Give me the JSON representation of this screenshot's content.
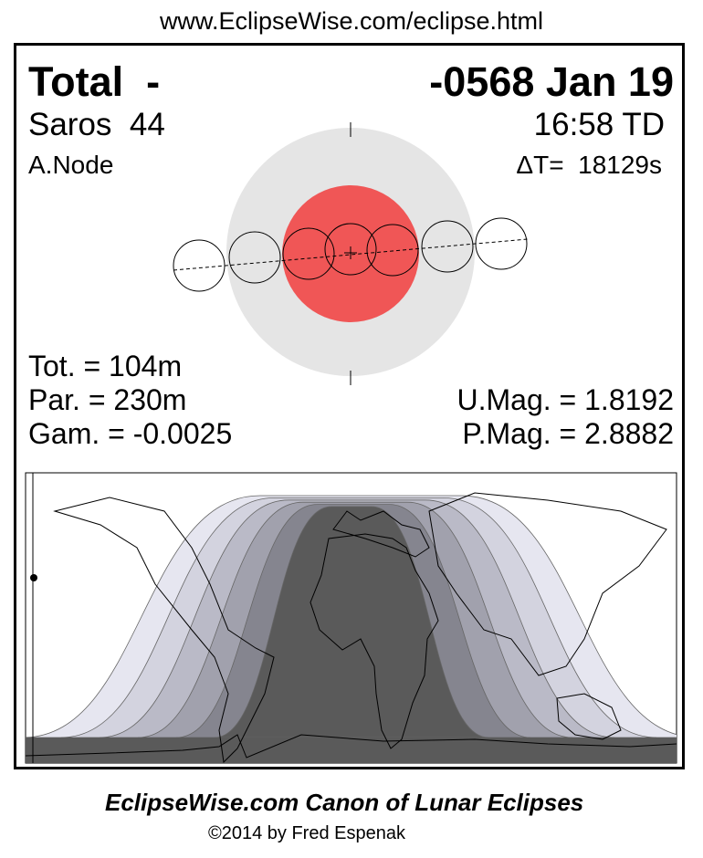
{
  "url": "www.EclipseWise.com/eclipse.html",
  "header": {
    "type": "Total  -",
    "date": "-0568 Jan 19",
    "saros": "Saros  44",
    "time": "16:58 TD",
    "node": "A.Node",
    "delta_t": "ΔT=  18129s"
  },
  "stats": {
    "tot": "Tot. = 104m",
    "par": "Par. = 230m",
    "gam": "Gam. = -0.0025",
    "umag": "U.Mag. = 1.8192",
    "pmag": "P.Mag. = 2.8882"
  },
  "colors": {
    "penumbra": "#e5e5e5",
    "umbra": "#f05656",
    "zones": [
      "#e6e6f0",
      "#d3d3df",
      "#babac7",
      "#a1a1ad",
      "#85858f",
      "#5a5a5a"
    ]
  },
  "footer": {
    "title": "EclipseWise.com Canon of Lunar Eclipses",
    "copyright": "©2014 by Fred Espenak"
  }
}
